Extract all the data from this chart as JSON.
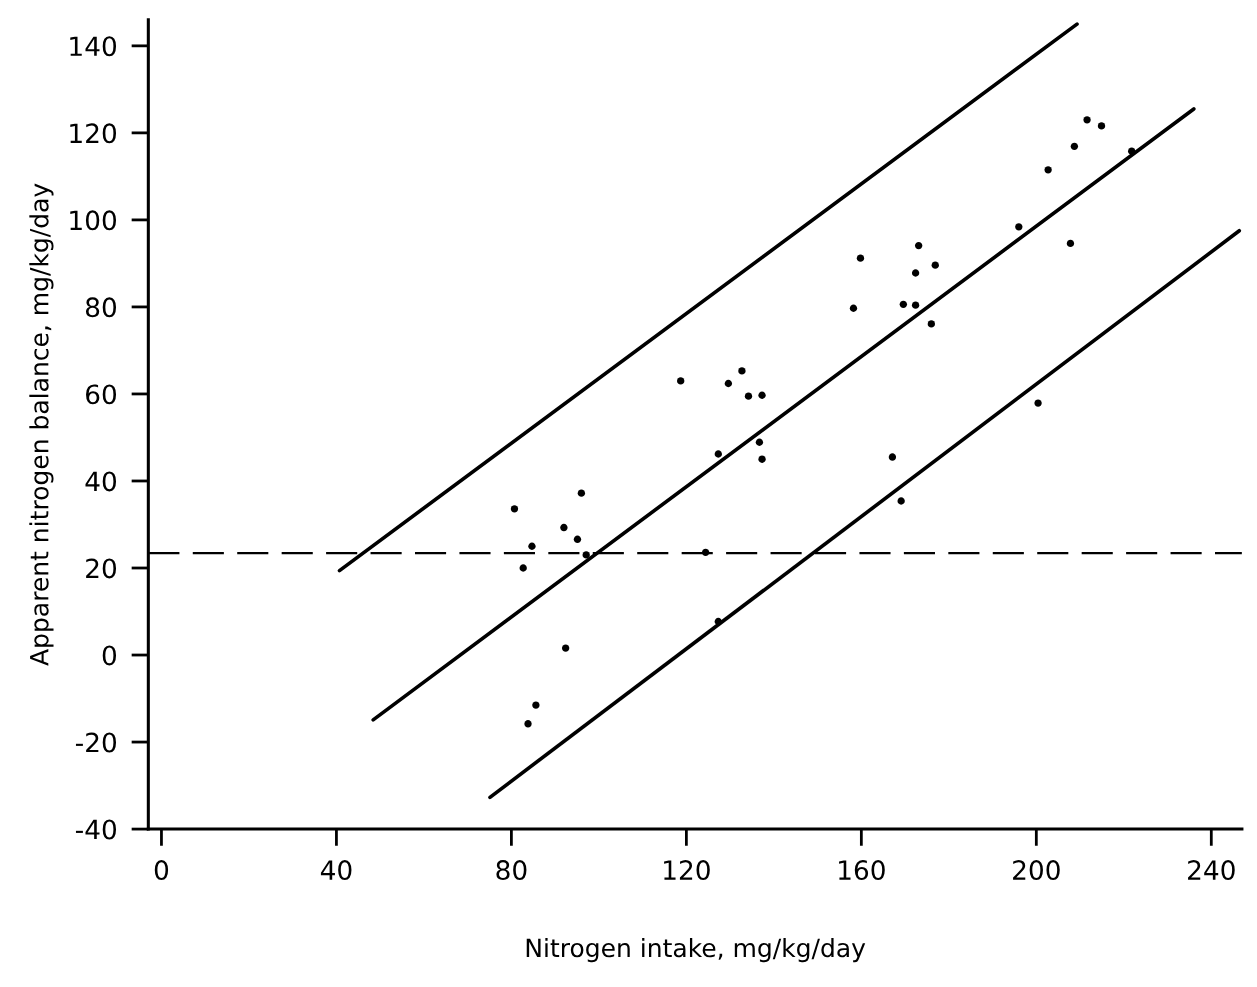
{
  "chart_data": {
    "type": "scatter",
    "xlabel": "Nitrogen intake, mg/kg/day",
    "ylabel": "Apparent nitrogen balance, mg/kg/day",
    "xlim": [
      -3,
      247
    ],
    "ylim": [
      -40,
      146
    ],
    "xticks": [
      0,
      40,
      80,
      120,
      160,
      200,
      240
    ],
    "yticks": [
      -40,
      -20,
      0,
      20,
      40,
      60,
      80,
      100,
      120,
      140
    ],
    "grid": false,
    "series": [
      {
        "marker": "circle",
        "color": "#000000",
        "x": [
          80.7,
          82.7,
          84.7,
          83.8,
          85.6,
          92.0,
          92.4,
          95.1,
          96.0,
          97.1,
          118.7,
          124.4,
          127.3,
          127.3,
          129.6,
          132.7,
          134.2,
          137.3,
          136.7,
          137.3,
          158.2,
          159.8,
          167.1,
          169.1,
          169.6,
          172.4,
          172.4,
          173.1,
          176.0,
          176.9,
          196.0,
          200.4,
          202.7,
          207.8,
          208.7,
          211.6,
          214.9,
          221.8
        ],
        "values": [
          33.6,
          20,
          25,
          -15.8,
          -11.5,
          29.3,
          1.6,
          26.6,
          37.2,
          23,
          63,
          23.6,
          46.2,
          7.7,
          62.4,
          65.3,
          59.5,
          59.7,
          48.9,
          45,
          79.7,
          91.2,
          45.5,
          35.4,
          80.6,
          80.4,
          87.8,
          94.1,
          76.1,
          89.6,
          98.4,
          57.9,
          111.5,
          94.6,
          116.9,
          123,
          121.6,
          115.8
        ]
      },
      {
        "type": "line",
        "marker": "none",
        "color": "#000000",
        "line_style": "solid",
        "x": [
          40.7,
          209.3
        ],
        "values": [
          19.4,
          145
        ]
      },
      {
        "type": "line",
        "marker": "none",
        "color": "#000000",
        "line_style": "solid",
        "x": [
          48.4,
          236.0
        ],
        "values": [
          -14.9,
          125.5
        ]
      },
      {
        "type": "line",
        "marker": "none",
        "color": "#000000",
        "line_style": "solid",
        "x": [
          75.1,
          246.4
        ],
        "values": [
          -32.7,
          97.5
        ]
      }
    ],
    "ref_lines": [
      {
        "axis": "y",
        "value": 23.4,
        "color": "#000000",
        "line_style": "dashed"
      }
    ]
  }
}
